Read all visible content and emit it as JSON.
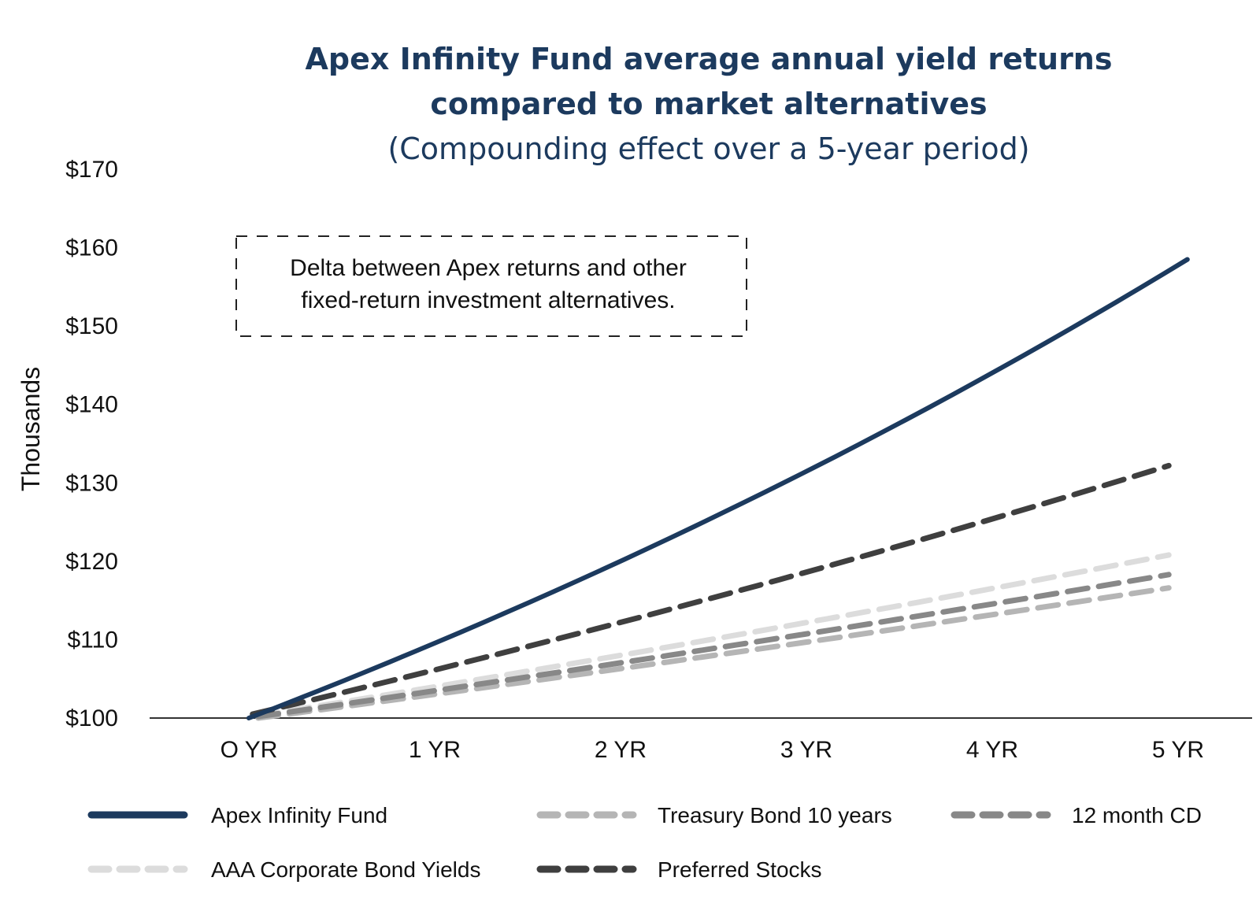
{
  "chart_data": {
    "type": "line",
    "title": "Apex Infinity Fund average annual yield returns compared to market alternatives",
    "title_lines": [
      "Apex Infinity Fund average annual yield returns",
      "compared to market alternatives"
    ],
    "subtitle": "(Compounding effect over a 5-year period)",
    "ylabel": "Thousands",
    "xlabel": "",
    "ylim": [
      100,
      170
    ],
    "yticks": [
      100,
      110,
      120,
      130,
      140,
      150,
      160,
      170
    ],
    "ytick_labels": [
      "$100",
      "$110",
      "$120",
      "$130",
      "$140",
      "$150",
      "$160",
      "$170"
    ],
    "categories": [
      "O YR",
      "1 YR",
      "2 YR",
      "3 YR",
      "4 YR",
      "5 YR"
    ],
    "series": [
      {
        "name": "Apex Infinity Fund",
        "color": "#1c3a5e",
        "dash": "solid",
        "x": [
          0,
          5.05
        ],
        "values": [
          100,
          158.5
        ],
        "curve": "compound"
      },
      {
        "name": "Treasury Bond 10 years",
        "color": "#b5b5b5",
        "dash": "dashed",
        "x": [
          0.05,
          4.95
        ],
        "values": [
          100,
          116.6
        ],
        "curve": "compound"
      },
      {
        "name": "12 month CD",
        "color": "#888888",
        "dash": "dashed",
        "x": [
          0.05,
          4.95
        ],
        "values": [
          100.2,
          118.3
        ],
        "curve": "compound"
      },
      {
        "name": "AAA Corporate Bond Yields",
        "color": "#dcdcdc",
        "dash": "dashed",
        "x": [
          0.05,
          4.95
        ],
        "values": [
          100.3,
          120.8
        ],
        "curve": "compound"
      },
      {
        "name": "Preferred Stocks",
        "color": "#3f3f3f",
        "dash": "dashed",
        "x": [
          0.02,
          4.95
        ],
        "values": [
          100.5,
          132.2
        ],
        "curve": "compound"
      }
    ],
    "annotation": {
      "lines": [
        "Delta between Apex returns and other",
        "fixed-return investment alternatives."
      ],
      "style": "dashed box"
    },
    "legend_placement": "bottom",
    "legend_order": [
      0,
      1,
      2,
      3,
      4
    ],
    "grid": false
  }
}
